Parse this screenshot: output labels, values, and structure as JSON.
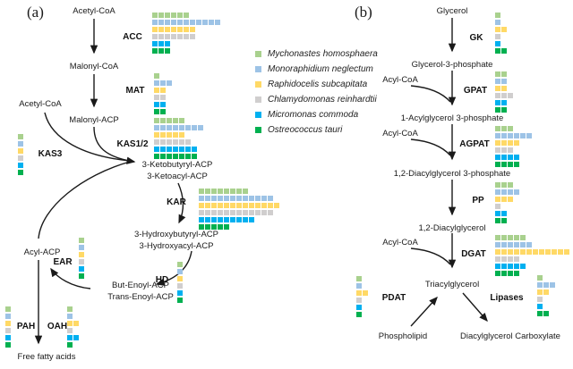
{
  "species_colors": [
    "#a9d18e",
    "#9dc3e6",
    "#ffd966",
    "#d0cece",
    "#00b0f0",
    "#00b050"
  ],
  "legend": {
    "items": [
      {
        "name": "Mychonastes homosphaera",
        "color": "#a9d18e"
      },
      {
        "name": "Monoraphidium neglectum",
        "color": "#9dc3e6"
      },
      {
        "name": "Raphidocelis subcapitata",
        "color": "#ffd966"
      },
      {
        "name": "Chlamydomonas reinhardtii",
        "color": "#d0cece"
      },
      {
        "name": "Micromonas commoda",
        "color": "#00b0f0"
      },
      {
        "name": "Ostreococcus tauri",
        "color": "#00b050"
      }
    ]
  },
  "panel_a": {
    "letter": "(a)",
    "nodes": {
      "acetyl_coa_top": "Acetyl-CoA",
      "malonyl_coa": "Malonyl-CoA",
      "malonyl_acp": "Malonyl-ACP",
      "acetyl_coa_left": "Acetyl-CoA",
      "ketobutyryl": "3-Ketobutyryl-ACP",
      "ketoacyl": "3-Ketoacyl-ACP",
      "hydroxybutyryl": "3-Hydroxybutyryl-ACP",
      "hydroxyacyl": "3-Hydroxyacyl-ACP",
      "but_enoyl": "But-Enoyl-ACP",
      "trans_enoyl": "Trans-Enoyl-ACP",
      "acyl_acp": "Acyl-ACP",
      "free_fatty_acids": "Free fatty acids"
    },
    "enzymes": {
      "acc": "ACC",
      "mat": "MAT",
      "kas12": "KAS1/2",
      "kas3": "KAS3",
      "kar": "KAR",
      "hd": "HD",
      "ear": "EAR",
      "pah": "PAH",
      "oah": "OAH"
    },
    "blocks": {
      "acc": [
        6,
        11,
        7,
        7,
        3,
        3
      ],
      "mat": [
        1,
        3,
        2,
        2,
        2,
        2
      ],
      "kas12": [
        5,
        8,
        5,
        6,
        7,
        7
      ],
      "kas3": [
        1,
        1,
        1,
        1,
        1,
        1
      ],
      "kar": [
        8,
        12,
        13,
        12,
        9,
        5
      ],
      "ear": [
        1,
        1,
        1,
        1,
        1,
        1
      ],
      "hd": [
        1,
        1,
        1,
        1,
        1,
        1
      ],
      "pah": [
        1,
        1,
        1,
        1,
        1,
        1
      ],
      "oah": [
        1,
        1,
        2,
        1,
        2,
        1
      ]
    }
  },
  "panel_b": {
    "letter": "(b)",
    "nodes": {
      "glycerol": "Glycerol",
      "glycerol_3_phosphate": "Glycerol-3-phosphate",
      "acyl_coa_1": "Acyl-CoA",
      "acylglycerol_3_phosphate": "1-Acylglycerol 3-phosphate",
      "acyl_coa_2": "Acyl-CoA",
      "diacylglycerol_3_phosphate": "1,2-Diacylglycerol 3-phosphate",
      "diacylglycerol": "1,2-Diacylglycerol",
      "acyl_coa_3": "Acyl-CoA",
      "triacylglycerol": "Triacylglycerol",
      "phospholipid": "Phospholipid",
      "diacylglycerol_carboxylate": "Diacylglycerol Carboxylate"
    },
    "enzymes": {
      "gk": "GK",
      "gpat": "GPAT",
      "agpat": "AGPAT",
      "pp": "PP",
      "dgat": "DGAT",
      "pdat": "PDAT",
      "lipases": "Lipases"
    },
    "blocks": {
      "gk": [
        1,
        1,
        2,
        1,
        1,
        2
      ],
      "gpat": [
        2,
        2,
        2,
        3,
        2,
        2
      ],
      "agpat": [
        3,
        6,
        4,
        3,
        4,
        4
      ],
      "pp": [
        3,
        4,
        3,
        1,
        2,
        2
      ],
      "dgat": [
        5,
        6,
        12,
        4,
        5,
        4
      ],
      "pdat": [
        1,
        1,
        2,
        1,
        1,
        1
      ],
      "lipases": [
        1,
        3,
        2,
        1,
        1,
        2
      ]
    }
  }
}
